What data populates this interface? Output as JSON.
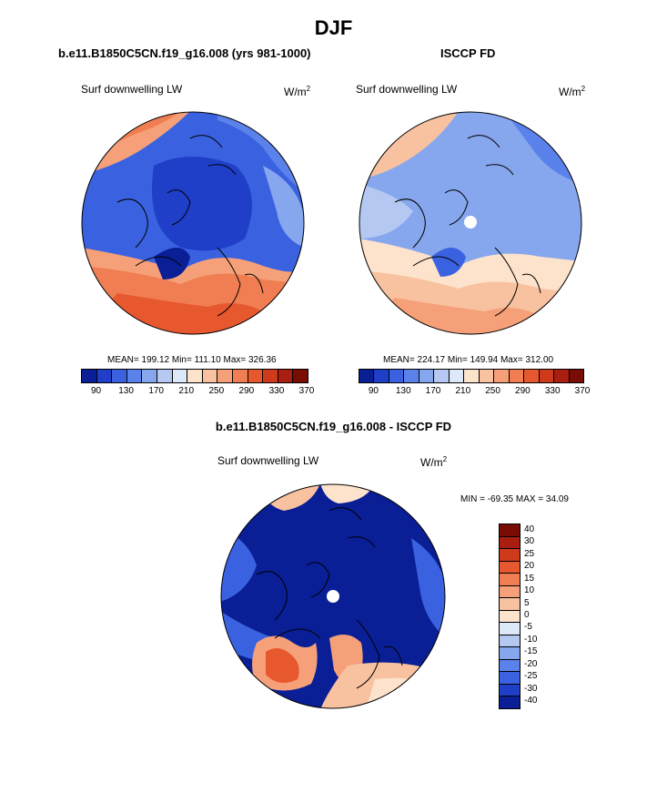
{
  "page": {
    "title": "DJF",
    "panel1_title": "b.e11.B1850C5CN.f19_g16.008 (yrs 981-1000)",
    "panel2_title": "ISCCP FD",
    "panel3_title": "b.e11.B1850C5CN.f19_g16.008 - ISCCP FD"
  },
  "panels": [
    {
      "label": "Surf downwelling LW",
      "units": "W/m",
      "units_sup": "2",
      "stats": "MEAN= 199.12  Min= 111.10  Max= 326.36"
    },
    {
      "label": "Surf downwelling LW",
      "units": "W/m",
      "units_sup": "2",
      "stats": "MEAN= 224.17  Min= 149.94  Max= 312.00"
    },
    {
      "label": "Surf downwelling LW",
      "units": "W/m",
      "units_sup": "2",
      "stats": "MIN = -69.35 MAX =  34.09"
    }
  ],
  "colorbar_abs": {
    "colors": [
      "#0a1e96",
      "#1f3fc8",
      "#3a62e0",
      "#5a82ea",
      "#86a6ee",
      "#b4c8f2",
      "#dde8f8",
      "#fde2cc",
      "#f8c2a0",
      "#f5a078",
      "#f07e52",
      "#e8582e",
      "#d03a1c",
      "#a81e10",
      "#7a0c06"
    ],
    "ticks": [
      "90",
      "130",
      "170",
      "210",
      "250",
      "290",
      "330",
      "370"
    ]
  },
  "colorbar_diff": {
    "colors": [
      "#7a0c06",
      "#a81e10",
      "#d03a1c",
      "#e8582e",
      "#f07e52",
      "#f5a078",
      "#f8c2a0",
      "#fde2cc",
      "#dde8f8",
      "#b4c8f2",
      "#86a6ee",
      "#5a82ea",
      "#3a62e0",
      "#1f3fc8",
      "#0a1e96"
    ],
    "ticks": [
      "40",
      "30",
      "25",
      "20",
      "15",
      "10",
      "5",
      "0",
      "-5",
      "-10",
      "-15",
      "-20",
      "-25",
      "-30",
      "-40"
    ]
  },
  "map_colors": {
    "deep_blue": "#0a1e96",
    "blue": "#1f3fc8",
    "mid_blue": "#3a62e0",
    "light_blue": "#86a6ee",
    "pale_blue": "#b4c8f2",
    "pale": "#dde8f8",
    "peach": "#fde2cc",
    "salmon": "#f5a078",
    "orange": "#f07e52",
    "red": "#e8582e"
  }
}
